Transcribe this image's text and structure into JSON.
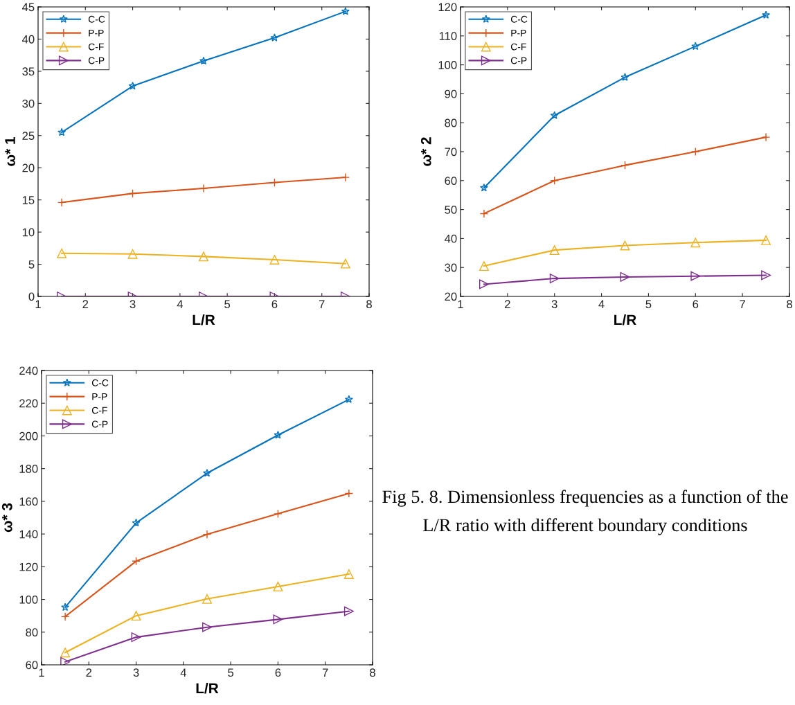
{
  "chart_data": [
    {
      "type": "line",
      "xlabel": "L/R",
      "ylabel": "ω* 1",
      "x": [
        1.5,
        3,
        4.5,
        6,
        7.5
      ],
      "xlim": [
        1,
        8
      ],
      "xticks": [
        1,
        2,
        3,
        4,
        5,
        6,
        7,
        8
      ],
      "ylim": [
        0,
        45
      ],
      "yticks": [
        0,
        5,
        10,
        15,
        20,
        25,
        30,
        35,
        40,
        45
      ],
      "grid": false,
      "legend": "top left",
      "series": [
        {
          "name": "C-C",
          "color": "#0072bd",
          "marker": "star",
          "values": [
            25.5,
            32.7,
            36.6,
            40.2,
            44.3
          ]
        },
        {
          "name": "P-P",
          "color": "#d95319",
          "marker": "cross",
          "values": [
            14.6,
            16.0,
            16.8,
            17.7,
            18.5
          ]
        },
        {
          "name": "C-F",
          "color": "#edb120",
          "marker": "triangle",
          "values": [
            6.7,
            6.6,
            6.2,
            5.7,
            5.1
          ]
        },
        {
          "name": "C-P",
          "color": "#7e2f8e",
          "marker": "triangle_right",
          "values": [
            0,
            0,
            0,
            0,
            0
          ]
        }
      ]
    },
    {
      "type": "line",
      "xlabel": "L/R",
      "ylabel": "ω* 2",
      "x": [
        1.5,
        3,
        4.5,
        6,
        7.5
      ],
      "xlim": [
        1,
        8
      ],
      "xticks": [
        1,
        2,
        3,
        4,
        5,
        6,
        7,
        8
      ],
      "ylim": [
        20,
        120
      ],
      "yticks": [
        20,
        30,
        40,
        50,
        60,
        70,
        80,
        90,
        100,
        110,
        120
      ],
      "grid": false,
      "legend": "top left",
      "series": [
        {
          "name": "C-C",
          "color": "#0072bd",
          "marker": "star",
          "values": [
            57.5,
            82.5,
            95.7,
            106.4,
            117.2
          ]
        },
        {
          "name": "P-P",
          "color": "#d95319",
          "marker": "cross",
          "values": [
            48.6,
            60.0,
            65.3,
            70.0,
            75.0
          ]
        },
        {
          "name": "C-F",
          "color": "#edb120",
          "marker": "triangle",
          "values": [
            30.5,
            36.0,
            37.6,
            38.6,
            39.4
          ]
        },
        {
          "name": "C-P",
          "color": "#7e2f8e",
          "marker": "triangle_right",
          "values": [
            24.2,
            26.2,
            26.7,
            27.0,
            27.3
          ]
        }
      ]
    },
    {
      "type": "line",
      "xlabel": "L/R",
      "ylabel": "ω* 3",
      "x": [
        1.5,
        3,
        4.5,
        6,
        7.5
      ],
      "xlim": [
        1,
        8
      ],
      "xticks": [
        1,
        2,
        3,
        4,
        5,
        6,
        7,
        8
      ],
      "ylim": [
        60,
        240
      ],
      "yticks": [
        60,
        80,
        100,
        120,
        140,
        160,
        180,
        200,
        220,
        240
      ],
      "grid": false,
      "legend": "top left",
      "annotations": [
        "Fig 5. 8. Dimensionless frequencies as a function of the L/R ratio with different boundary conditions"
      ],
      "series": [
        {
          "name": "C-C",
          "color": "#0072bd",
          "marker": "star",
          "values": [
            95.2,
            146.8,
            177.2,
            200.5,
            222.3
          ]
        },
        {
          "name": "P-P",
          "color": "#d95319",
          "marker": "cross",
          "values": [
            89.5,
            123.4,
            139.8,
            152.4,
            164.8
          ]
        },
        {
          "name": "C-F",
          "color": "#edb120",
          "marker": "triangle",
          "values": [
            67.5,
            90.0,
            100.3,
            107.9,
            115.5
          ]
        },
        {
          "name": "C-P",
          "color": "#7e2f8e",
          "marker": "triangle_right",
          "values": [
            61.8,
            76.9,
            83.0,
            87.8,
            92.8
          ]
        }
      ]
    }
  ]
}
